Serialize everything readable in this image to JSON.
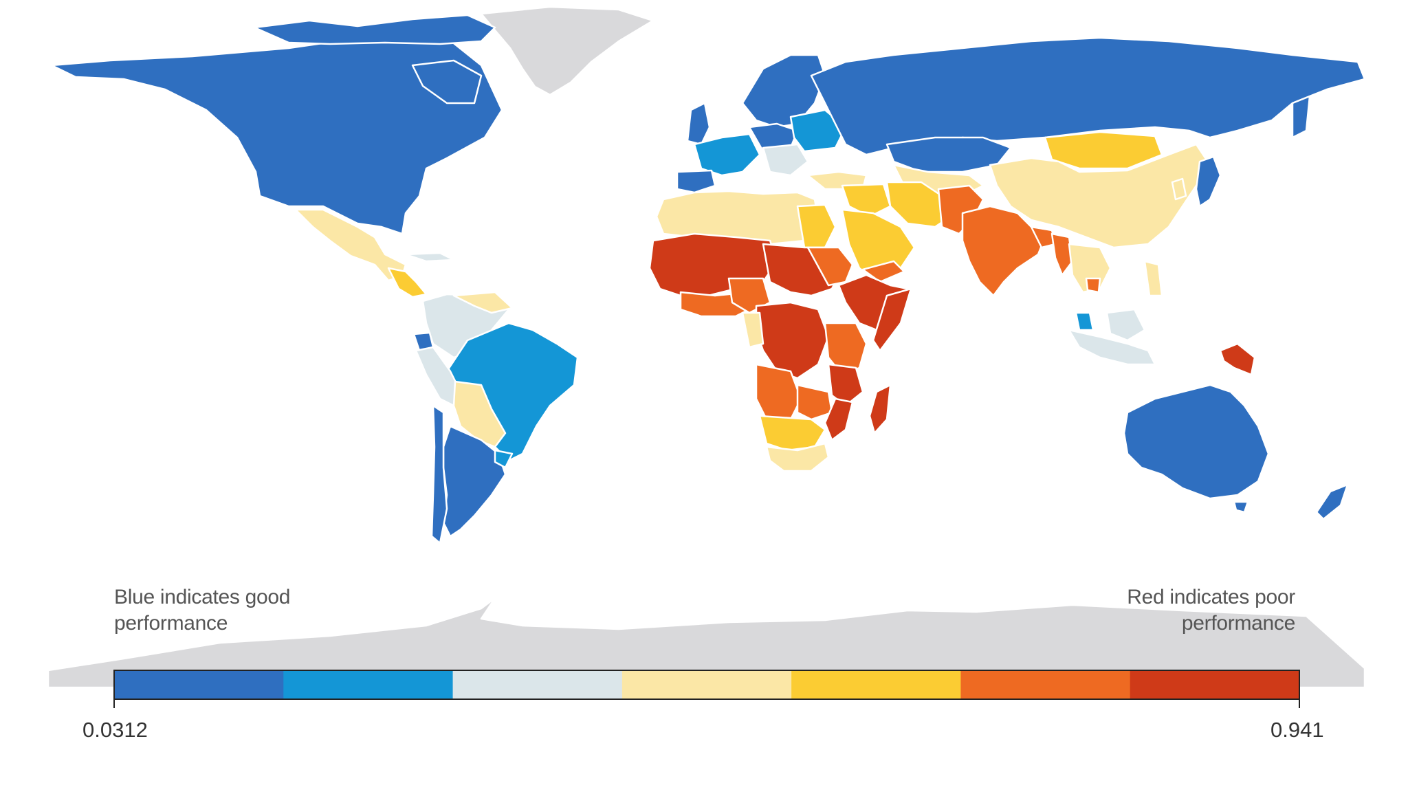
{
  "legend": {
    "good_note_line1": "Blue indicates good",
    "good_note_line2": "performance",
    "poor_note_line1": "Red indicates poor",
    "poor_note_line2": "performance",
    "min": "0.0312",
    "max": "0.941",
    "colors": [
      "#2f6fc0",
      "#1496d6",
      "#dbe6ea",
      "#fbe7a6",
      "#fbcc33",
      "#ee6a22",
      "#cf3a18"
    ]
  },
  "colors": {
    "no_data": "#d9d9db",
    "border": "#ffffff",
    "background": "#ffffff"
  }
}
